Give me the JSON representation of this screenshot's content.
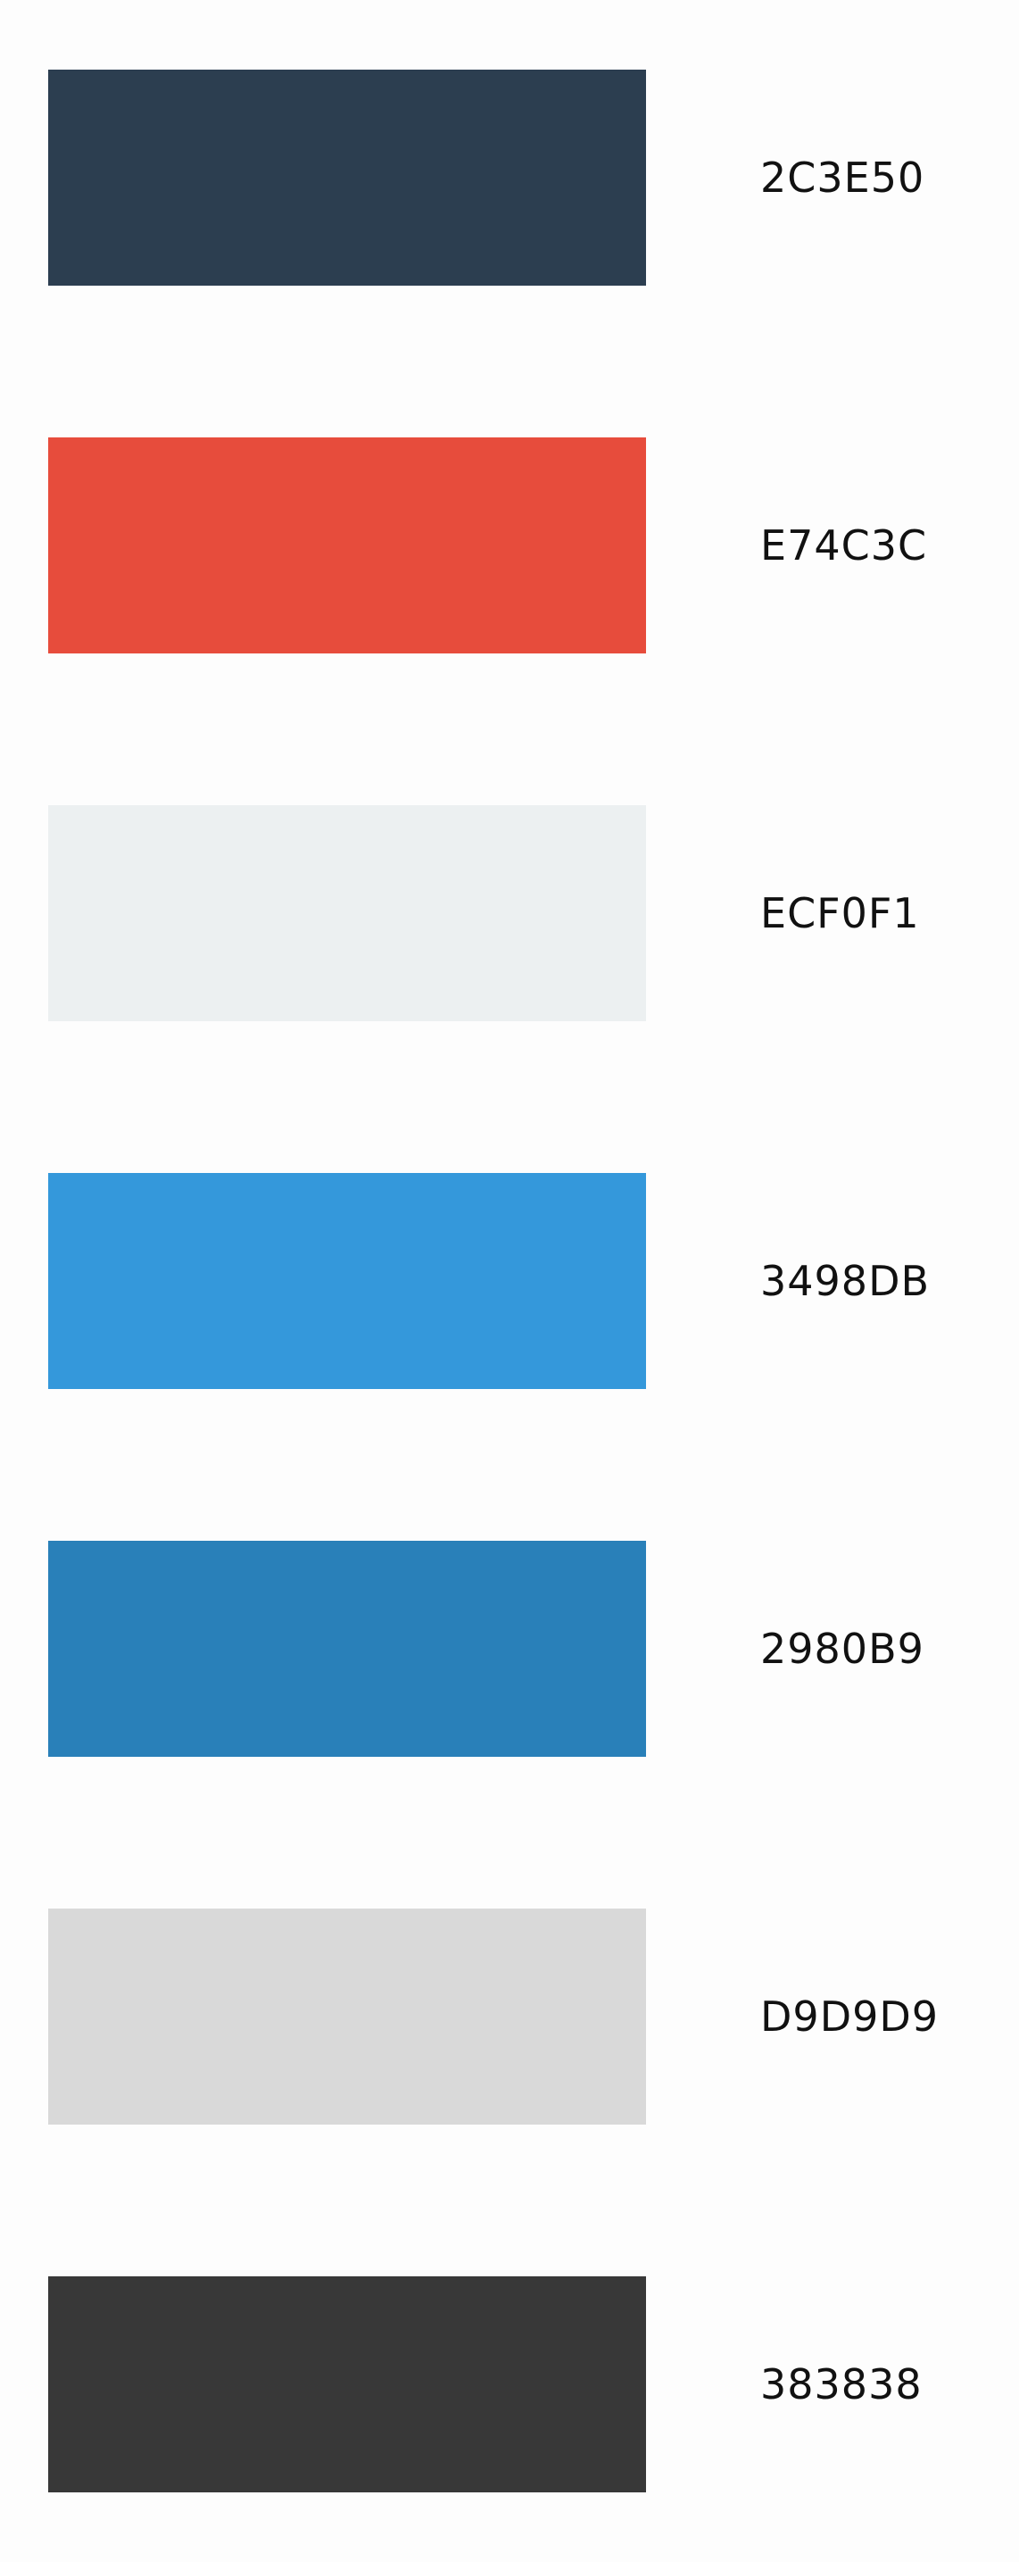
{
  "swatches": [
    {
      "hex": "2C3E50",
      "color": "#2C3E50"
    },
    {
      "hex": "E74C3C",
      "color": "#E74C3C"
    },
    {
      "hex": "ECF0F1",
      "color": "#ECF0F1"
    },
    {
      "hex": "3498DB",
      "color": "#3498DB"
    },
    {
      "hex": "2980B9",
      "color": "#2980B9"
    },
    {
      "hex": "D9D9D9",
      "color": "#D9D9D9"
    },
    {
      "hex": "383838",
      "color": "#383838"
    }
  ]
}
